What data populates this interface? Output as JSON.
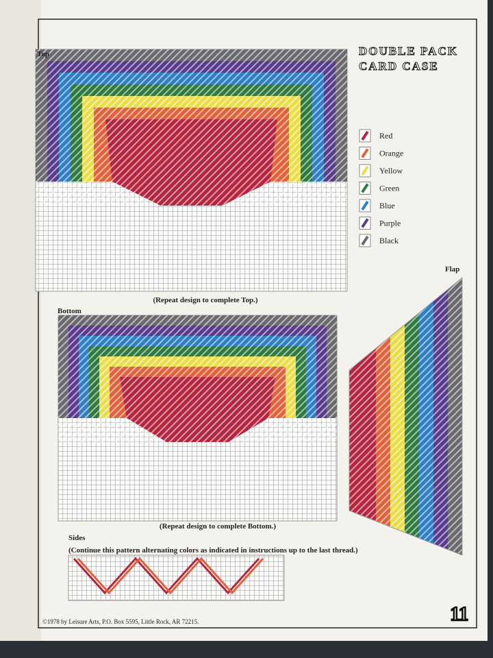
{
  "header": {
    "title_lines": [
      "DOUBLE PACK",
      "CARD CASE"
    ],
    "page_number": "11"
  },
  "sections": {
    "top": {
      "label": "Top",
      "note": "(Repeat design to complete Top.)"
    },
    "bottom": {
      "label": "Bottom",
      "note": "(Repeat design to complete Bottom.)"
    },
    "flap": {
      "label": "Flap"
    },
    "sides": {
      "label": "Sides",
      "note": "(Continue this pattern alternating colors as indicated in  instructions up to the last thread.)"
    }
  },
  "legend": [
    {
      "label": "Red",
      "color": "#b3263f"
    },
    {
      "label": "Orange",
      "color": "#e0623a"
    },
    {
      "label": "Yellow",
      "color": "#eadd4a"
    },
    {
      "label": "Green",
      "color": "#2f7a3e"
    },
    {
      "label": "Blue",
      "color": "#2f7fc4"
    },
    {
      "label": "Purple",
      "color": "#5a3a8c"
    },
    {
      "label": "Black",
      "color": "#6a6a6e"
    }
  ],
  "footer": "©1978 by Leisure Arts, P.O. Box 5595, Little Rock, AR 72215."
}
